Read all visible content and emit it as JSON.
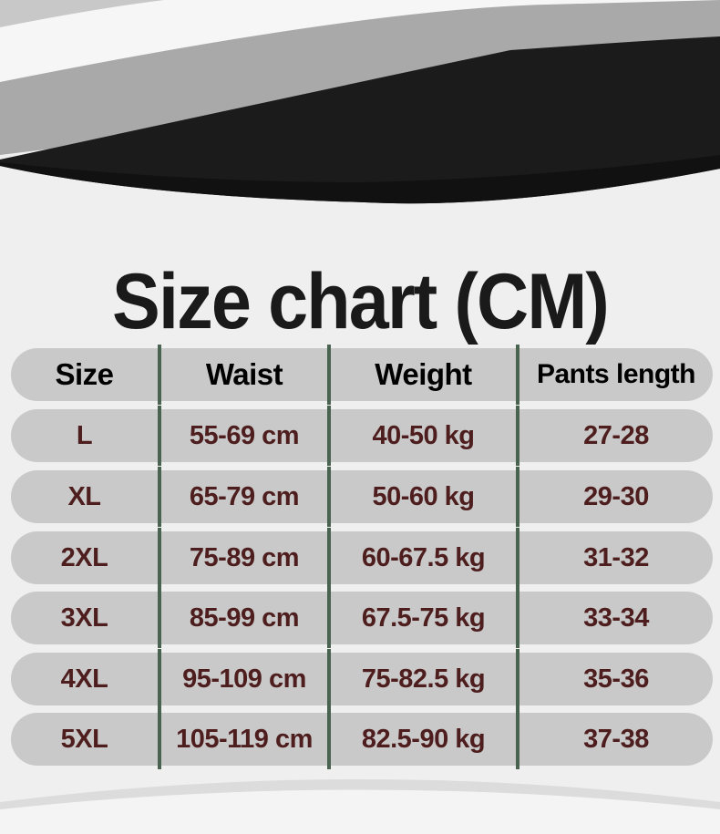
{
  "title": "Size chart (CM)",
  "table": {
    "headers": [
      "Size",
      "Waist",
      "Weight",
      "Pants length"
    ],
    "rows": [
      [
        "L",
        "55-69 cm",
        "40-50 kg",
        "27-28"
      ],
      [
        "XL",
        "65-79 cm",
        "50-60 kg",
        "29-30"
      ],
      [
        "2XL",
        "75-89 cm",
        "60-67.5 kg",
        "31-32"
      ],
      [
        "3XL",
        "85-99 cm",
        "67.5-75 kg",
        "33-34"
      ],
      [
        "4XL",
        "95-109 cm",
        "75-82.5 kg",
        "35-36"
      ],
      [
        "5XL",
        "105-119 cm",
        "82.5-90 kg",
        "37-38"
      ]
    ]
  },
  "colors": {
    "row_bg": "#c9c9c9",
    "divider": "#4a6350",
    "value_text": "#4e1e1e",
    "header_text": "#000000"
  }
}
